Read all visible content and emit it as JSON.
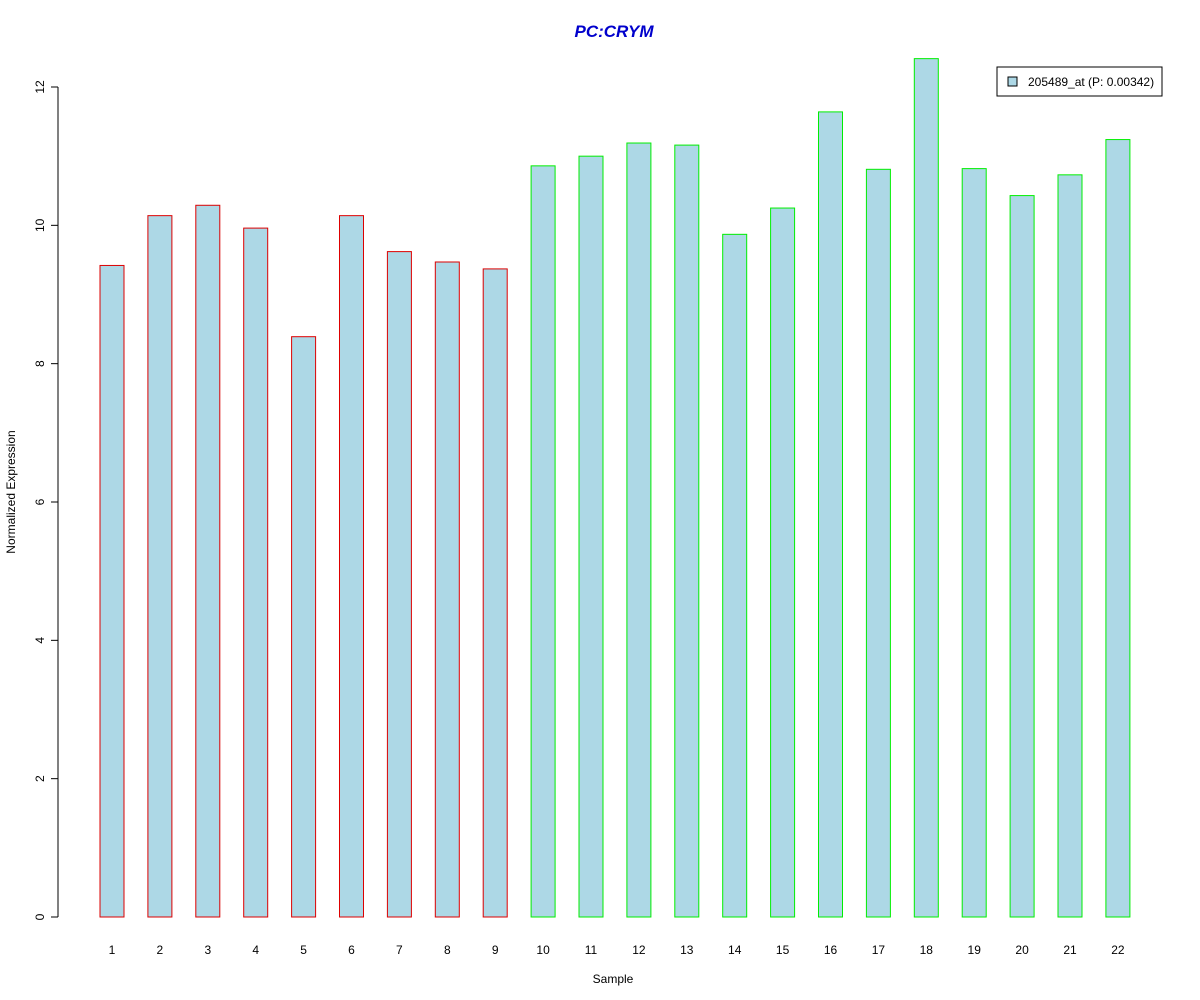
{
  "chart_data": {
    "type": "bar",
    "title": "PC:CRYM",
    "xlabel": "Sample",
    "ylabel": "Normalized Expression",
    "categories": [
      "1",
      "2",
      "3",
      "4",
      "5",
      "6",
      "7",
      "8",
      "9",
      "10",
      "11",
      "12",
      "13",
      "14",
      "15",
      "16",
      "17",
      "18",
      "19",
      "20",
      "21",
      "22"
    ],
    "series": [
      {
        "name": "205489_at (P: 0.00342)",
        "values": [
          9.42,
          10.14,
          10.29,
          9.96,
          8.39,
          10.14,
          9.62,
          9.47,
          9.37,
          10.86,
          11.0,
          11.19,
          11.16,
          9.87,
          10.25,
          11.64,
          10.81,
          12.41,
          10.82,
          10.43,
          10.73,
          11.24
        ]
      }
    ],
    "group_size_first": 9,
    "ylim": [
      0,
      12
    ],
    "yticks": [
      0,
      2,
      4,
      6,
      8,
      10,
      12
    ],
    "legend_position": "top-right",
    "grid": false,
    "colors": {
      "title": "#0000cc",
      "bar_fill": "#add8e6",
      "group1_border": "#dd0000",
      "group2_border": "#00ee00",
      "axis": "#000000"
    }
  }
}
